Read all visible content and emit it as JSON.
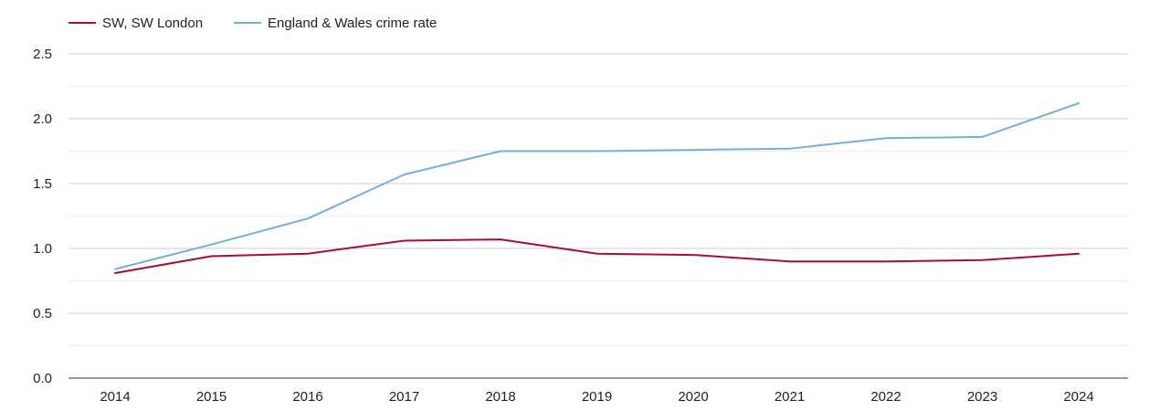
{
  "chart_data": {
    "type": "line",
    "title": "",
    "xlabel": "",
    "ylabel": "",
    "categories": [
      "2014",
      "2015",
      "2016",
      "2017",
      "2018",
      "2019",
      "2020",
      "2021",
      "2022",
      "2023",
      "2024"
    ],
    "series": [
      {
        "name": "SW, SW London",
        "color": "#a50f33",
        "values": [
          0.81,
          0.94,
          0.96,
          1.06,
          1.07,
          0.96,
          0.95,
          0.9,
          0.9,
          0.91,
          0.96
        ]
      },
      {
        "name": "England & Wales crime rate",
        "color": "#77afd2",
        "values": [
          0.84,
          1.03,
          1.23,
          1.57,
          1.75,
          1.75,
          1.76,
          1.77,
          1.85,
          1.86,
          2.12
        ]
      }
    ],
    "ylim": [
      0,
      2.5
    ],
    "yticks": [
      0,
      0.5,
      1,
      1.5,
      2,
      2.5
    ],
    "ytick_labels": [
      "0.0",
      "0.5",
      "1.0",
      "1.5",
      "2.0",
      "2.5"
    ],
    "minor_gridlines": true,
    "grid": true,
    "legend": "top-left"
  }
}
